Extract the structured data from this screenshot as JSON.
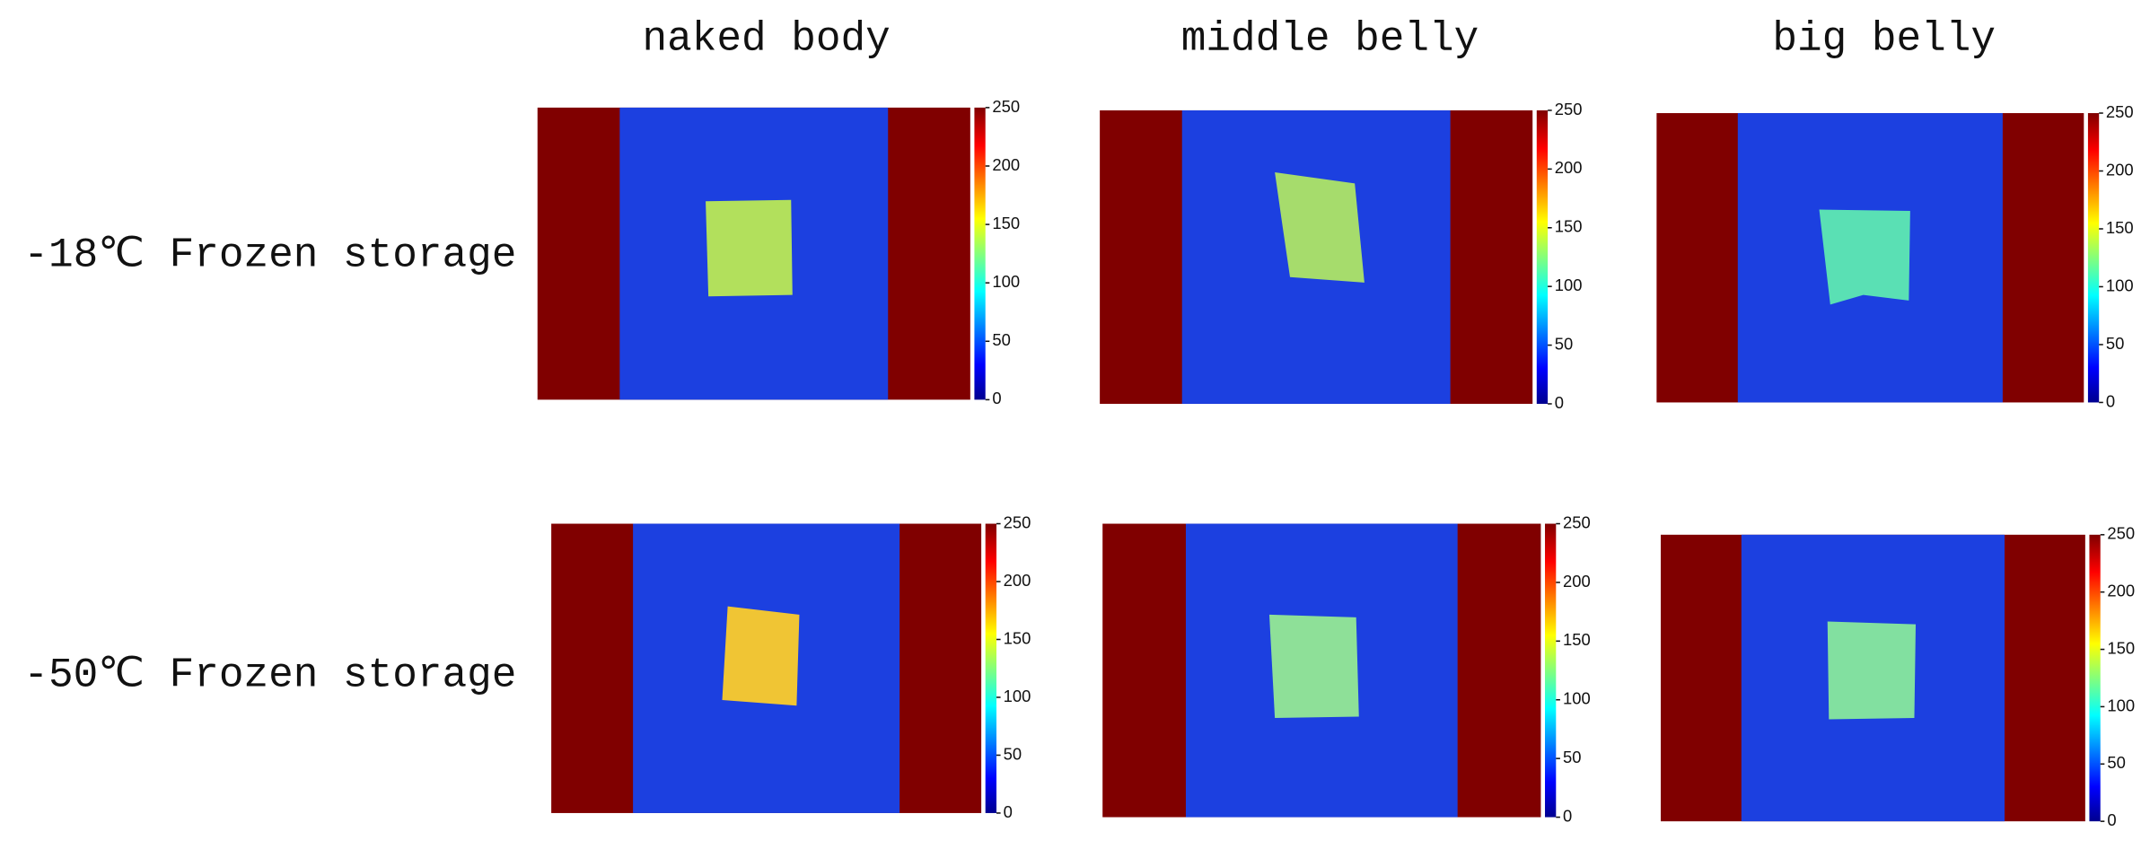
{
  "columns": [
    "naked body",
    "middle belly",
    "big belly"
  ],
  "rows": [
    "-18℃ Frozen storage",
    "-50℃ Frozen storage"
  ],
  "colorbar": {
    "range": [
      0,
      250
    ],
    "ticks": [
      0,
      50,
      100,
      150,
      200,
      250
    ]
  }
}
